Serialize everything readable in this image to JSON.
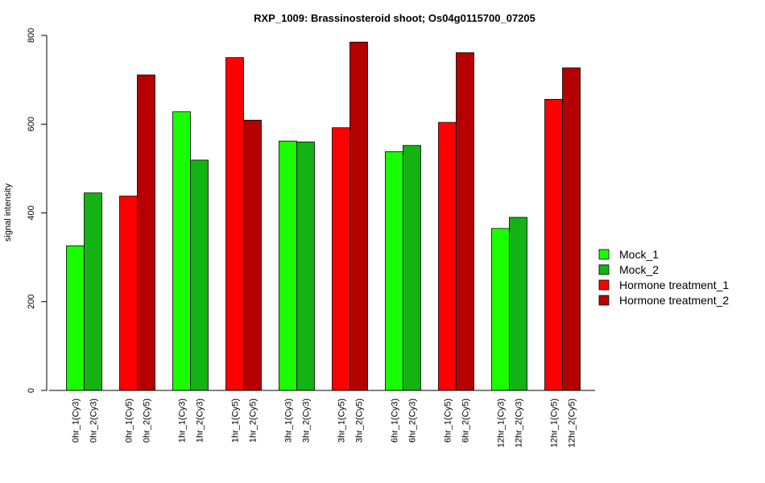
{
  "chart_data": {
    "type": "bar",
    "title": "RXP_1009: Brassinosteroid shoot; Os04g0115700_07205",
    "xlabel": "",
    "ylabel": "signal intensity",
    "ylim": [
      0,
      800
    ],
    "yticks": [
      0,
      200,
      400,
      600,
      800
    ],
    "grid": false,
    "legend_position": "right",
    "legend": [
      {
        "name": "Mock_1",
        "color": "#1aff00"
      },
      {
        "name": "Mock_2",
        "color": "#12b312"
      },
      {
        "name": "Hormone treatment_1",
        "color": "#ff0000"
      },
      {
        "name": "Hormone treatment_2",
        "color": "#b40000"
      }
    ],
    "categories": [
      "0hr_1(Cy3)",
      "0hr_2(Cy3)",
      "0hr_1(Cy5)",
      "0hr_2(Cy5)",
      "1hr_1(Cy3)",
      "1hr_2(Cy3)",
      "1hr_1(Cy5)",
      "1hr_2(Cy5)",
      "3hr_1(Cy3)",
      "3hr_2(Cy3)",
      "3hr_1(Cy5)",
      "3hr_2(Cy5)",
      "6hr_1(Cy3)",
      "6hr_2(Cy3)",
      "6hr_1(Cy5)",
      "6hr_2(Cy5)",
      "12hr_1(Cy3)",
      "12hr_2(Cy3)",
      "12hr_1(Cy5)",
      "12hr_2(Cy5)"
    ],
    "values": [
      326,
      445,
      438,
      711,
      628,
      519,
      750,
      609,
      562,
      560,
      592,
      785,
      538,
      552,
      604,
      761,
      365,
      390,
      656,
      727
    ],
    "bar_series": [
      "Mock_1",
      "Mock_2",
      "Hormone treatment_1",
      "Hormone treatment_2",
      "Mock_1",
      "Mock_2",
      "Hormone treatment_1",
      "Hormone treatment_2",
      "Mock_1",
      "Mock_2",
      "Hormone treatment_1",
      "Hormone treatment_2",
      "Mock_1",
      "Mock_2",
      "Hormone treatment_1",
      "Hormone treatment_2",
      "Mock_1",
      "Mock_2",
      "Hormone treatment_1",
      "Hormone treatment_2"
    ]
  }
}
